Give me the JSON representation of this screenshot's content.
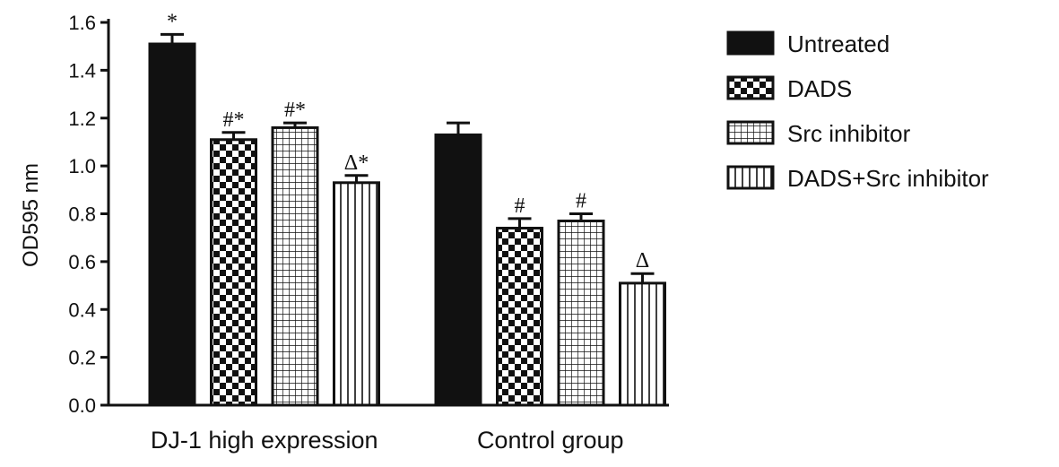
{
  "chart_data": {
    "type": "bar",
    "ylabel": "OD595 nm",
    "ylim": [
      0,
      1.6
    ],
    "yticks": [
      "0.0",
      "0.2",
      "0.4",
      "0.6",
      "0.8",
      "1.0",
      "1.2",
      "1.4",
      "1.6"
    ],
    "categories": [
      "DJ-1 high expression",
      "Control group"
    ],
    "series": [
      {
        "name": "Untreated",
        "pattern": "solid",
        "values": [
          1.51,
          1.13
        ],
        "errors": [
          0.04,
          0.05
        ],
        "annotations": [
          "*",
          ""
        ]
      },
      {
        "name": "DADS",
        "pattern": "checker",
        "values": [
          1.11,
          0.74
        ],
        "errors": [
          0.03,
          0.04
        ],
        "annotations": [
          "#*",
          "#"
        ]
      },
      {
        "name": "Src inhibitor",
        "pattern": "grid",
        "values": [
          1.16,
          0.77
        ],
        "errors": [
          0.02,
          0.03
        ],
        "annotations": [
          "#*",
          "#"
        ]
      },
      {
        "name": "DADS+Src inhibitor",
        "pattern": "vlines",
        "values": [
          0.93,
          0.51
        ],
        "errors": [
          0.03,
          0.04
        ],
        "annotations": [
          "Δ*",
          "Δ"
        ]
      }
    ],
    "legend_position": "top-right",
    "grid": false,
    "colors": {
      "bar_fill": "#111111",
      "axis": "#111111",
      "background": "#ffffff"
    }
  }
}
